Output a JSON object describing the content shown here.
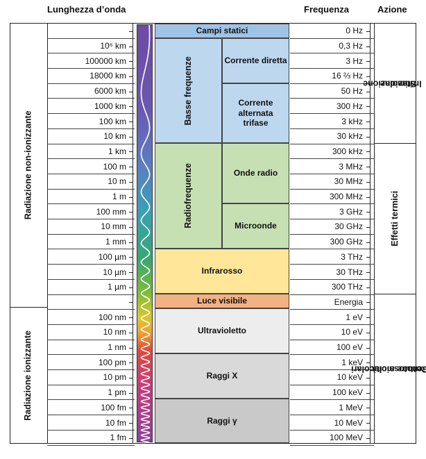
{
  "headers": {
    "wavelength": "Lunghezza d’onda",
    "frequency": "Frequenza",
    "action": "Azione"
  },
  "wavelengths": [
    "",
    "10⁶ km",
    "100000 km",
    "18000 km",
    "6000 km",
    "1000 km",
    "100 km",
    "10 km",
    "1 km",
    "100 m",
    "10 m",
    "1 m",
    "100 mm",
    "10 mm",
    "1 mm",
    "100 µm",
    "10 µm",
    "1 µm",
    "",
    "100 nm",
    "10 nm",
    "1 nm",
    "100 pm",
    "10 pm",
    "1 pm",
    "100 fm",
    "10 fm",
    "1 fm"
  ],
  "frequencies": [
    "0 Hz",
    "0,3 Hz",
    "3 Hz",
    "16 ⅔ Hz",
    "50 Hz",
    "300 Hz",
    "3 kHz",
    "30 kHz",
    "300 kHz",
    "3 MHz",
    "30 MHz",
    "300 MHz",
    "3 GHz",
    "30 GHz",
    "300 GHz",
    "3 THz",
    "30 THz",
    "300 THz",
    "Energia",
    "1 eV",
    "10 eV",
    "100 eV",
    "1 keV",
    "10 keV",
    "100 keV",
    "1 MeV",
    "10 MeV",
    "100 MeV"
  ],
  "radiation": {
    "non_ionizing": "Radiazione non-ionizzante",
    "ionizing": "Radiazione ionizzante"
  },
  "bands": {
    "static": "Campi statici",
    "low_freq": "Basse frequenze",
    "dc": "Corrente diretta",
    "ac": "Corrente alternata trifase",
    "radio_freq": "Radiofrequenze",
    "radio_waves": "Onde radio",
    "microwaves": "Microonde",
    "infrared": "Infrarosso",
    "visible": "Luce visibile",
    "uv": "Ultravioletto",
    "xray": "Raggi X",
    "gamma": "Raggi γ"
  },
  "actions": {
    "stimulation_1": "Stimolazione",
    "stimulation_2": "Irritazione",
    "thermal": "Effetti termici",
    "molecular_1": "Rotture molecolari",
    "molecular_2": "Genotossicità"
  },
  "colors": {
    "static": "#9fc3e5",
    "low_freq": "#bdd7ee",
    "radio": "#c6e0b4",
    "infrared": "#ffe699",
    "visible": "#f4b183",
    "uv": "#ededed",
    "xray": "#d9d9d9",
    "gamma": "#c9c9c9"
  }
}
